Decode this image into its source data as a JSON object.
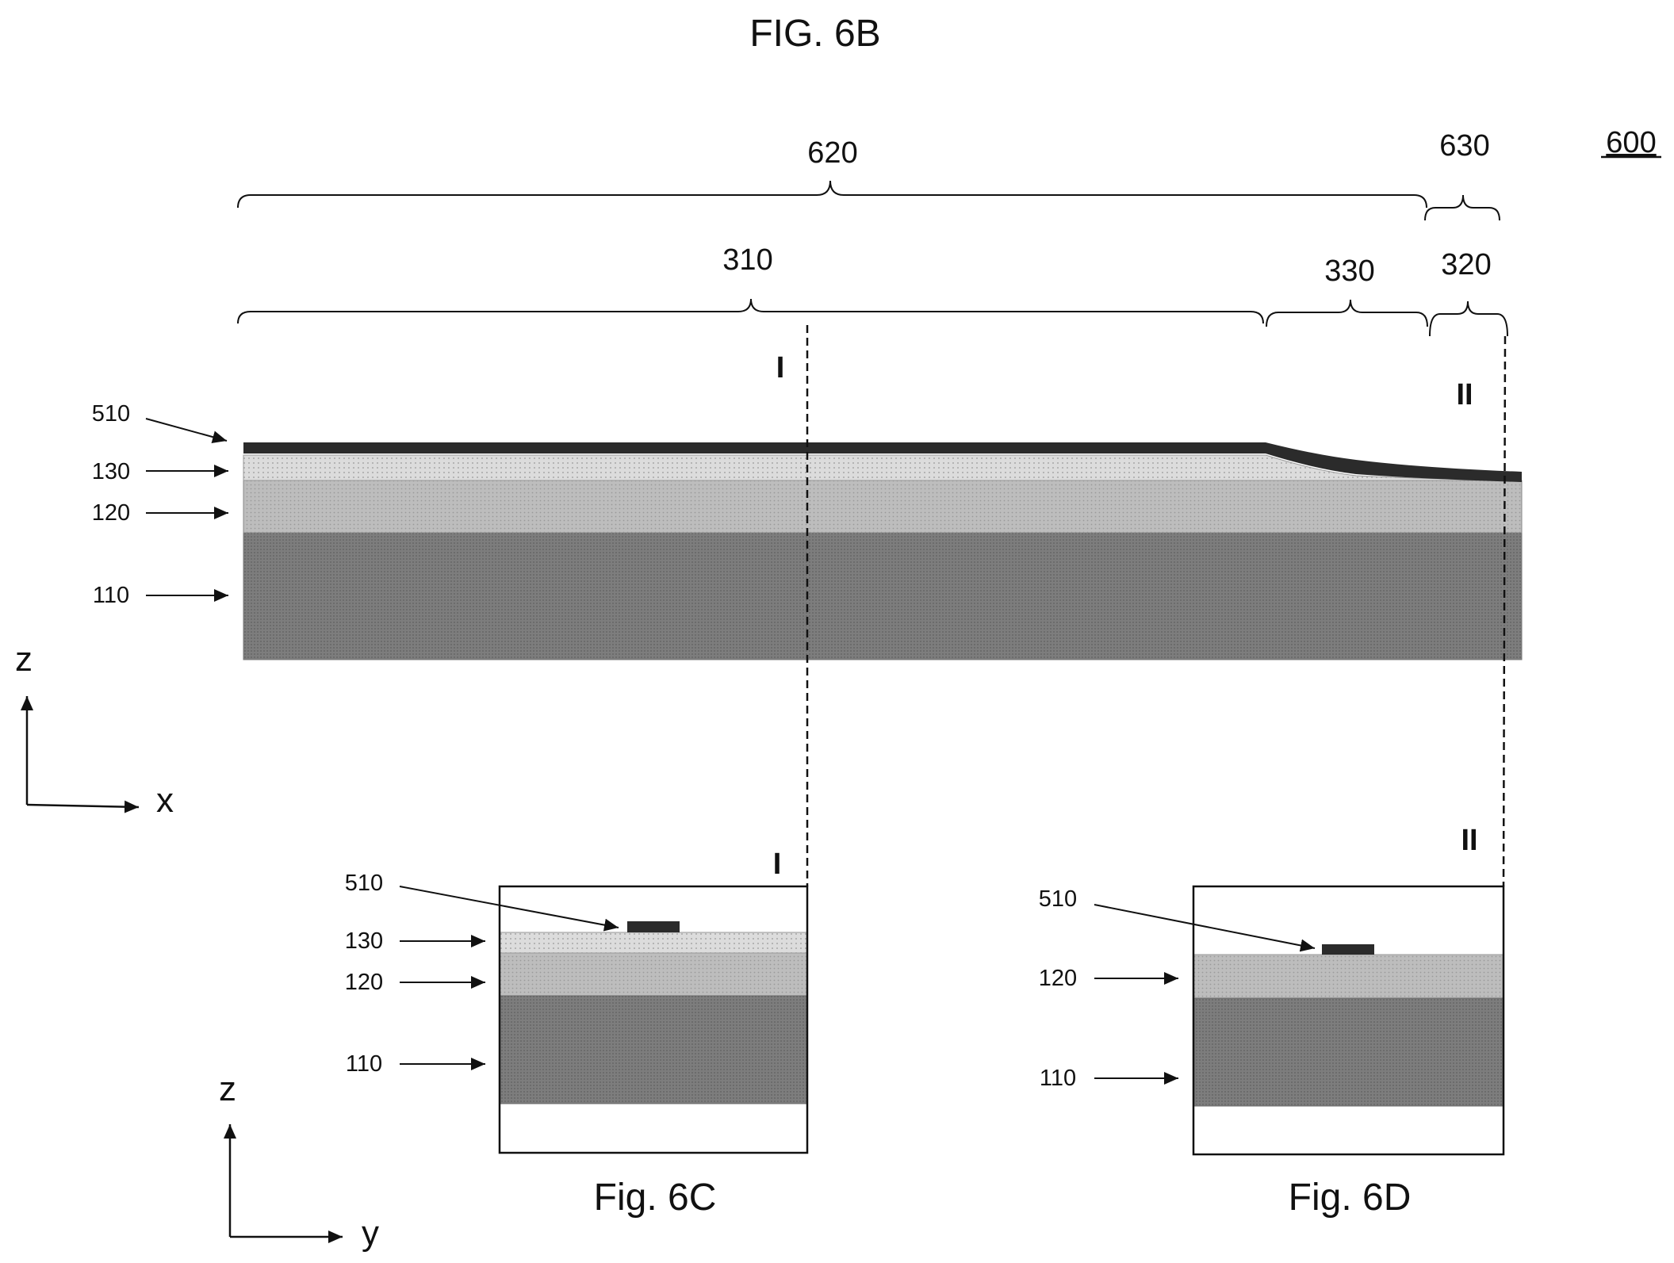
{
  "figure_titles": {
    "main": "FIG. 6B",
    "sub_c": "Fig. 6C",
    "sub_d": "Fig. 6D"
  },
  "device_ref": "600",
  "regions": {
    "r620": "620",
    "r630": "630",
    "r310": "310",
    "r330": "330",
    "r320": "320"
  },
  "section_marks": {
    "first": "I",
    "second": "II"
  },
  "layers": {
    "l510": "510",
    "l130": "130",
    "l120": "120",
    "l110": "110"
  },
  "axes": {
    "vertical": "z",
    "horizontal_main": "x",
    "horizontal_sub": "y"
  },
  "colors": {
    "layer_510": "#2b2b2b",
    "layer_130": "#d2d2d2",
    "layer_120": "#b8b8b8",
    "layer_110": "#7a7a7a",
    "line": "#111111"
  }
}
